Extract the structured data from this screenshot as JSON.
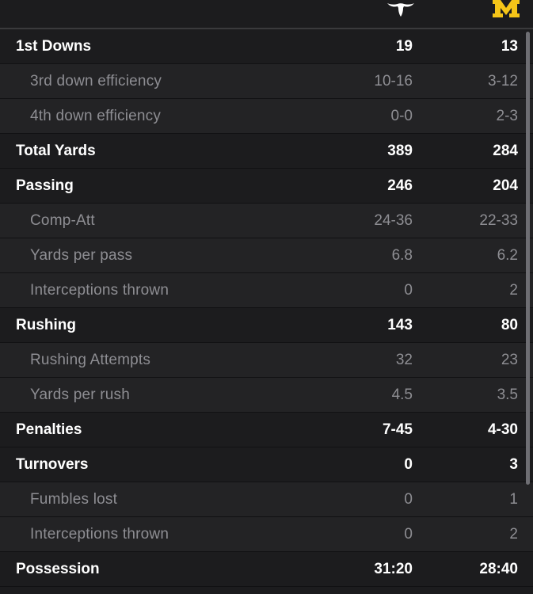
{
  "header": {
    "team1_logo": "longhorn-logo-icon",
    "team2_logo": "block-m-logo-icon",
    "colors": {
      "texas_logo": "#ffffff",
      "michigan_logo": "#f5c518"
    }
  },
  "rows": [
    {
      "label": "1st Downs",
      "team1": "19",
      "team2": "13",
      "kind": "main"
    },
    {
      "label": "3rd down efficiency",
      "team1": "10-16",
      "team2": "3-12",
      "kind": "sub"
    },
    {
      "label": "4th down efficiency",
      "team1": "0-0",
      "team2": "2-3",
      "kind": "sub"
    },
    {
      "label": "Total Yards",
      "team1": "389",
      "team2": "284",
      "kind": "main"
    },
    {
      "label": "Passing",
      "team1": "246",
      "team2": "204",
      "kind": "main"
    },
    {
      "label": "Comp-Att",
      "team1": "24-36",
      "team2": "22-33",
      "kind": "sub"
    },
    {
      "label": "Yards per pass",
      "team1": "6.8",
      "team2": "6.2",
      "kind": "sub"
    },
    {
      "label": "Interceptions thrown",
      "team1": "0",
      "team2": "2",
      "kind": "sub"
    },
    {
      "label": "Rushing",
      "team1": "143",
      "team2": "80",
      "kind": "main"
    },
    {
      "label": "Rushing Attempts",
      "team1": "32",
      "team2": "23",
      "kind": "sub"
    },
    {
      "label": "Yards per rush",
      "team1": "4.5",
      "team2": "3.5",
      "kind": "sub"
    },
    {
      "label": "Penalties",
      "team1": "7-45",
      "team2": "4-30",
      "kind": "main"
    },
    {
      "label": "Turnovers",
      "team1": "0",
      "team2": "3",
      "kind": "main"
    },
    {
      "label": "Fumbles lost",
      "team1": "0",
      "team2": "1",
      "kind": "sub"
    },
    {
      "label": "Interceptions thrown",
      "team1": "0",
      "team2": "2",
      "kind": "sub"
    },
    {
      "label": "Possession",
      "team1": "31:20",
      "team2": "28:40",
      "kind": "main"
    }
  ]
}
